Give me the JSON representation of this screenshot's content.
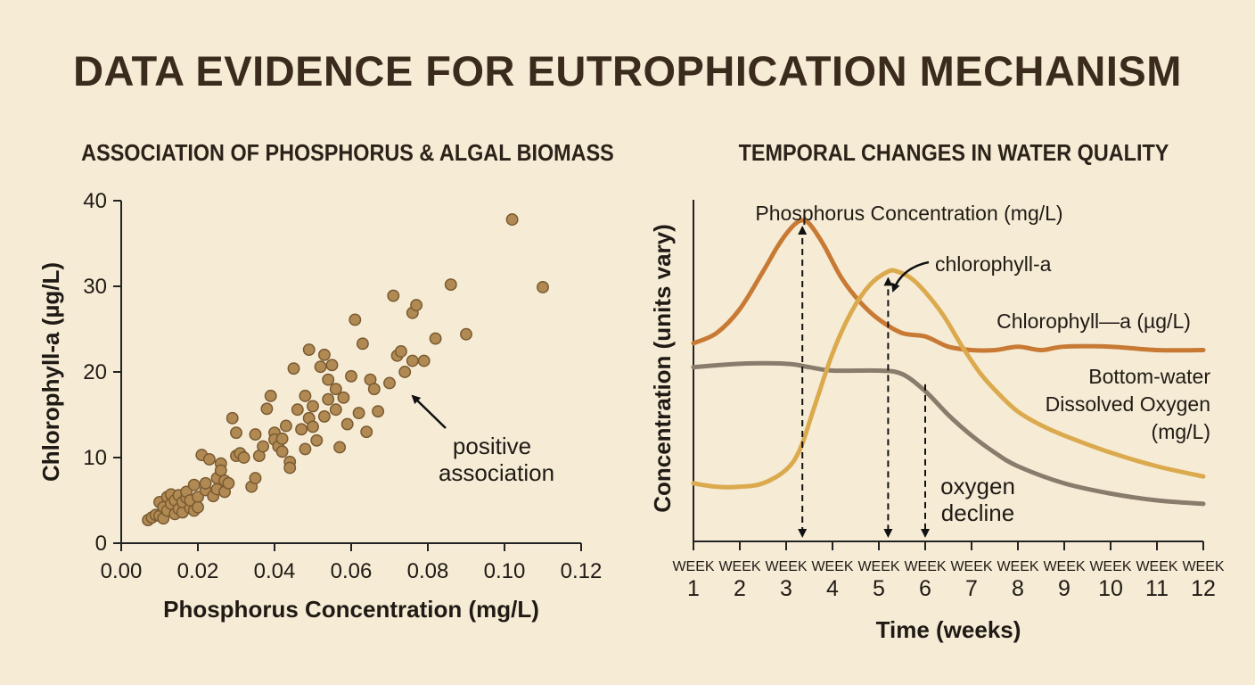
{
  "title": "DATA EVIDENCE FOR EUTROPHICATION MECHANISM",
  "colors": {
    "background": "#f6ecd6",
    "scatter_point": "#b08a52",
    "scatter_edge": "#7a5a32",
    "phosphorus": "#c87a35",
    "chlorophyll": "#dcaa4e",
    "oxygen": "#8a7c6c"
  },
  "chart_data": [
    {
      "type": "scatter",
      "title": "ASSOCIATION OF PHOSPHORUS & ALGAL BIOMASS",
      "xlabel": "Phosphorus Concentration (mg/L)",
      "ylabel": "Chlorophyll-a (µg/L)",
      "xlim": [
        0,
        0.12
      ],
      "ylim": [
        0,
        40
      ],
      "x_ticks": [
        "0.00",
        "0.02",
        "0.04",
        "0.06",
        "0.08",
        "0.10",
        "0.12"
      ],
      "y_ticks": [
        "0",
        "10",
        "20",
        "30",
        "40"
      ],
      "annotation": {
        "line1": "positive",
        "line2": "association"
      },
      "points": [
        [
          0.007,
          2.7
        ],
        [
          0.008,
          3.0
        ],
        [
          0.009,
          3.3
        ],
        [
          0.01,
          4.8
        ],
        [
          0.01,
          3.2
        ],
        [
          0.011,
          4.2
        ],
        [
          0.011,
          2.9
        ],
        [
          0.012,
          5.4
        ],
        [
          0.012,
          3.8
        ],
        [
          0.013,
          4.6
        ],
        [
          0.013,
          5.7
        ],
        [
          0.014,
          3.4
        ],
        [
          0.014,
          5.0
        ],
        [
          0.015,
          4.0
        ],
        [
          0.015,
          5.6
        ],
        [
          0.016,
          3.6
        ],
        [
          0.016,
          4.8
        ],
        [
          0.017,
          5.3
        ],
        [
          0.017,
          6.0
        ],
        [
          0.018,
          4.1
        ],
        [
          0.018,
          5.0
        ],
        [
          0.019,
          3.8
        ],
        [
          0.019,
          6.8
        ],
        [
          0.02,
          5.4
        ],
        [
          0.02,
          4.2
        ],
        [
          0.021,
          10.3
        ],
        [
          0.022,
          6.2
        ],
        [
          0.022,
          7.0
        ],
        [
          0.023,
          9.8
        ],
        [
          0.024,
          5.5
        ],
        [
          0.025,
          7.6
        ],
        [
          0.025,
          6.3
        ],
        [
          0.026,
          9.3
        ],
        [
          0.026,
          8.5
        ],
        [
          0.027,
          7.3
        ],
        [
          0.027,
          6.0
        ],
        [
          0.028,
          7.0
        ],
        [
          0.029,
          14.6
        ],
        [
          0.03,
          10.2
        ],
        [
          0.03,
          12.9
        ],
        [
          0.031,
          10.5
        ],
        [
          0.032,
          10.0
        ],
        [
          0.034,
          6.6
        ],
        [
          0.035,
          7.6
        ],
        [
          0.035,
          12.7
        ],
        [
          0.036,
          10.2
        ],
        [
          0.037,
          11.3
        ],
        [
          0.038,
          15.7
        ],
        [
          0.039,
          17.2
        ],
        [
          0.04,
          12.9
        ],
        [
          0.04,
          12.1
        ],
        [
          0.041,
          11.3
        ],
        [
          0.042,
          10.7
        ],
        [
          0.042,
          12.2
        ],
        [
          0.043,
          13.7
        ],
        [
          0.044,
          9.5
        ],
        [
          0.044,
          8.8
        ],
        [
          0.045,
          20.4
        ],
        [
          0.046,
          15.6
        ],
        [
          0.047,
          13.3
        ],
        [
          0.048,
          11.0
        ],
        [
          0.048,
          17.2
        ],
        [
          0.049,
          22.6
        ],
        [
          0.049,
          14.6
        ],
        [
          0.05,
          13.6
        ],
        [
          0.05,
          16.0
        ],
        [
          0.051,
          12.0
        ],
        [
          0.052,
          20.6
        ],
        [
          0.053,
          14.8
        ],
        [
          0.053,
          22.0
        ],
        [
          0.054,
          16.8
        ],
        [
          0.054,
          19.1
        ],
        [
          0.055,
          20.8
        ],
        [
          0.056,
          15.6
        ],
        [
          0.056,
          18.0
        ],
        [
          0.057,
          11.2
        ],
        [
          0.058,
          17.0
        ],
        [
          0.059,
          13.9
        ],
        [
          0.06,
          19.5
        ],
        [
          0.061,
          26.1
        ],
        [
          0.062,
          15.2
        ],
        [
          0.063,
          23.3
        ],
        [
          0.064,
          13.0
        ],
        [
          0.065,
          19.1
        ],
        [
          0.066,
          18.0
        ],
        [
          0.067,
          15.4
        ],
        [
          0.07,
          18.7
        ],
        [
          0.071,
          28.9
        ],
        [
          0.072,
          21.9
        ],
        [
          0.073,
          22.4
        ],
        [
          0.074,
          20.0
        ],
        [
          0.076,
          26.9
        ],
        [
          0.076,
          21.3
        ],
        [
          0.077,
          27.8
        ],
        [
          0.079,
          21.3
        ],
        [
          0.082,
          23.9
        ],
        [
          0.086,
          30.2
        ],
        [
          0.09,
          24.4
        ],
        [
          0.102,
          37.8
        ],
        [
          0.11,
          29.9
        ]
      ]
    },
    {
      "type": "line",
      "title": "TEMPORAL CHANGES IN WATER QUALITY",
      "xlabel": "Time (weeks)",
      "ylabel": "Concentration (units vary)",
      "x_tick_word": "WEEK",
      "categories": [
        "1",
        "2",
        "3",
        "4",
        "5",
        "6",
        "7",
        "8",
        "9",
        "10",
        "11",
        "12"
      ],
      "ylim": [
        0,
        1
      ],
      "series": [
        {
          "name": "Phosphorus Concentration (mg/L)",
          "x": [
            1,
            1.5,
            2,
            2.5,
            2.8,
            3,
            3.2,
            3.35,
            3.5,
            3.8,
            4.2,
            4.6,
            5,
            5.5,
            6,
            6.5,
            7,
            7.5,
            8,
            8.5,
            9,
            10,
            11,
            12
          ],
          "values": [
            0.58,
            0.61,
            0.68,
            0.79,
            0.86,
            0.9,
            0.93,
            0.94,
            0.93,
            0.87,
            0.77,
            0.7,
            0.65,
            0.61,
            0.6,
            0.57,
            0.56,
            0.56,
            0.57,
            0.56,
            0.57,
            0.57,
            0.56,
            0.56
          ]
        },
        {
          "name": "Chlorophyll—a (µg/L)",
          "x": [
            1,
            1.5,
            2,
            2.5,
            3,
            3.3,
            3.6,
            4,
            4.4,
            4.8,
            5.2,
            5.4,
            5.7,
            6,
            6.4,
            6.8,
            7.2,
            7.6,
            8,
            8.5,
            9,
            10,
            11,
            12
          ],
          "values": [
            0.17,
            0.16,
            0.16,
            0.17,
            0.21,
            0.27,
            0.39,
            0.55,
            0.67,
            0.75,
            0.79,
            0.79,
            0.77,
            0.73,
            0.66,
            0.57,
            0.49,
            0.43,
            0.38,
            0.34,
            0.31,
            0.26,
            0.22,
            0.19
          ]
        },
        {
          "name": "Bottom-water Dissolved Oxygen (mg/L)",
          "x": [
            1,
            2,
            3,
            3.5,
            4,
            5,
            5.5,
            6,
            6.5,
            7,
            7.5,
            8,
            9,
            10,
            11,
            12
          ],
          "values": [
            0.51,
            0.52,
            0.52,
            0.51,
            0.5,
            0.5,
            0.49,
            0.44,
            0.37,
            0.31,
            0.26,
            0.22,
            0.17,
            0.14,
            0.12,
            0.11
          ]
        }
      ],
      "annotations": {
        "chlorophyll_pointer": "chlorophyll-a",
        "oxygen_decline_1": "oxygen",
        "oxygen_decline_2": "decline",
        "series_labels": {
          "phosphorus": "Phosphorus Concentration (mg/L)",
          "chlorophyll": "Chlorophyll—a (µg/L)",
          "oxygen_1": "Bottom-water",
          "oxygen_2": "Dissolved Oxygen",
          "oxygen_3": "(mg/L)"
        }
      }
    }
  ]
}
